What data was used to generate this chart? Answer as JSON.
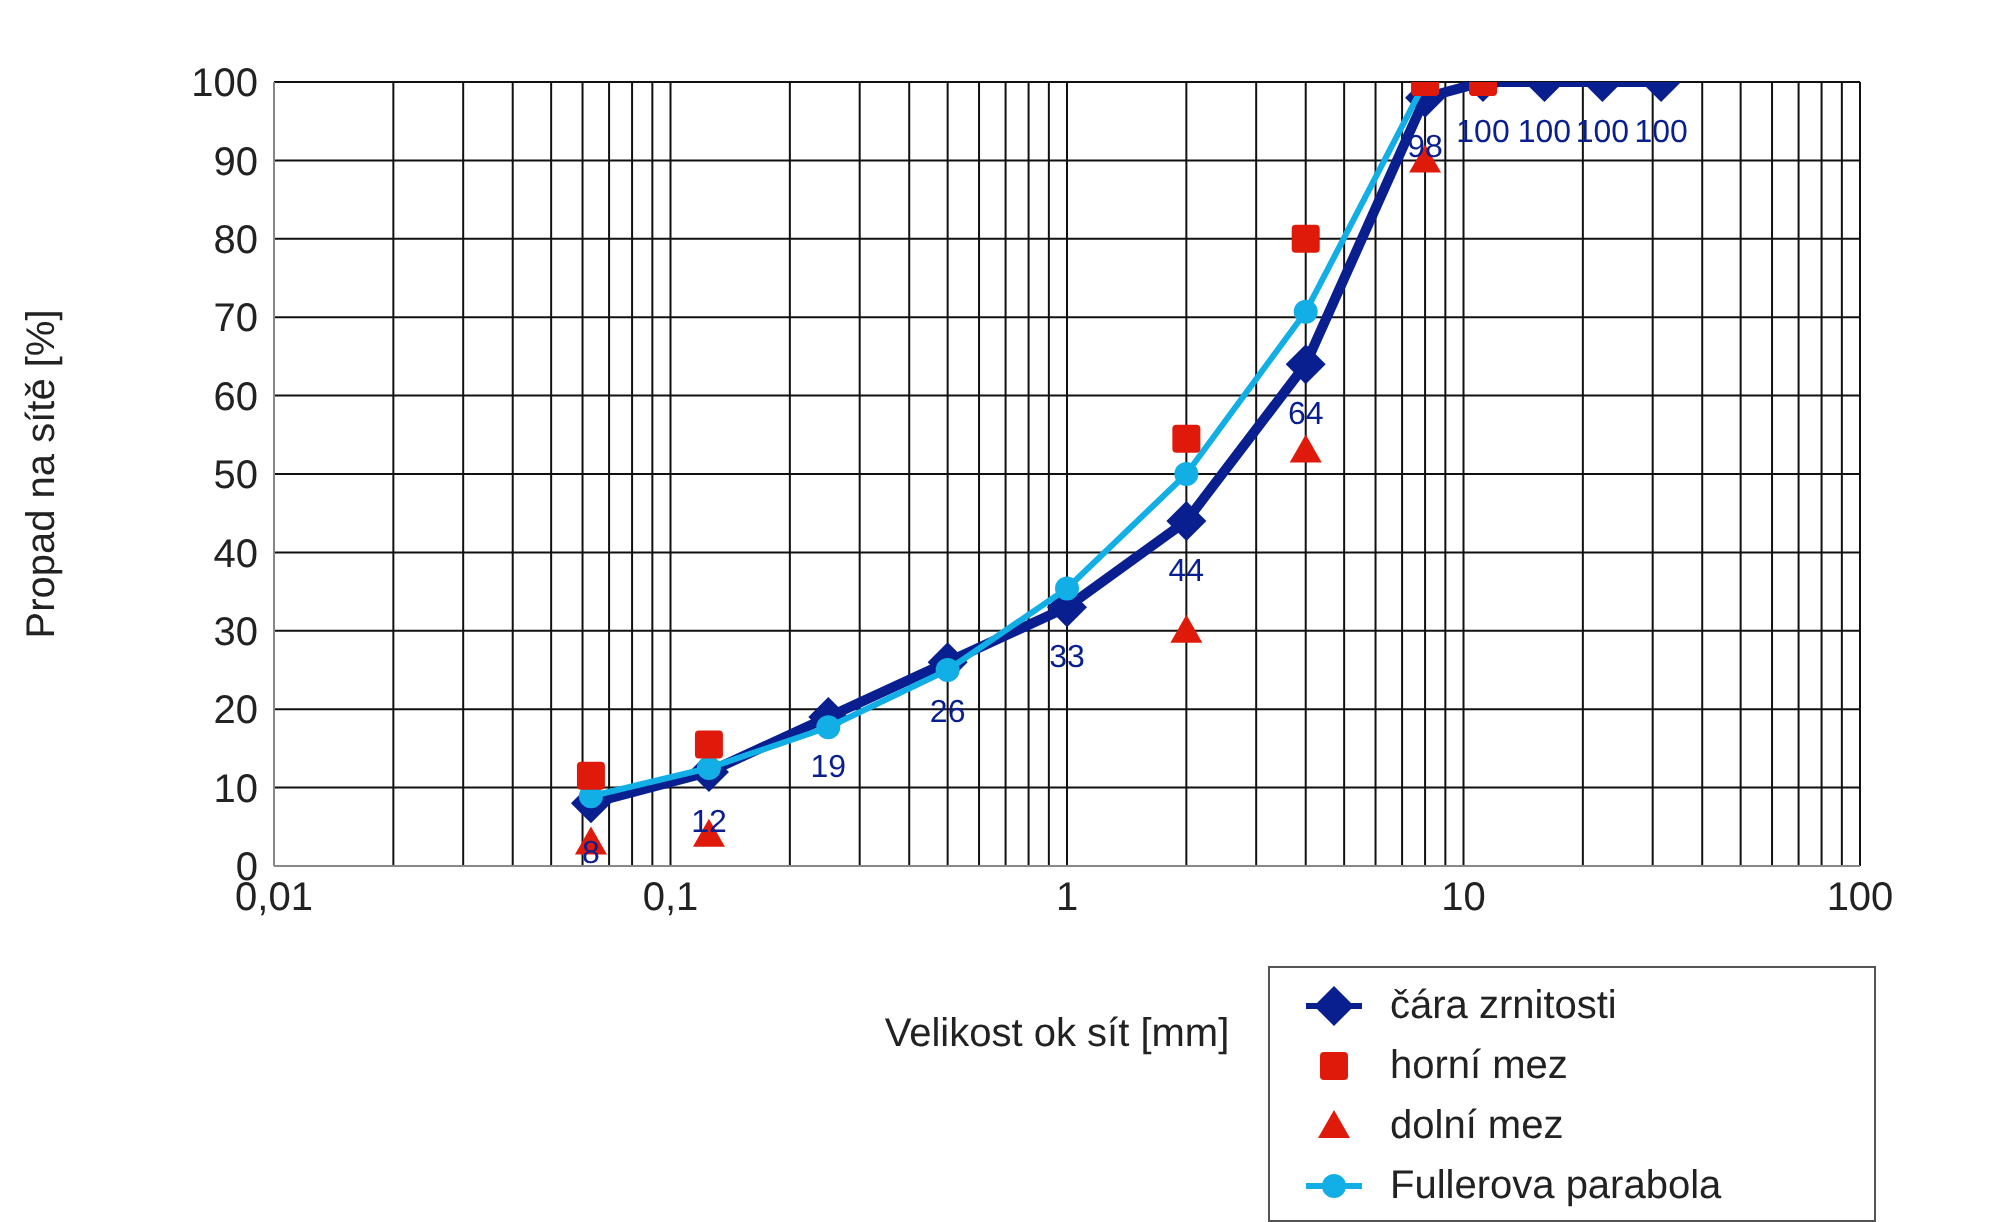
{
  "chart_data": {
    "type": "line",
    "xlabel": "Velikost ok sít [mm]",
    "ylabel": "Propad na sítě [%]",
    "log": "x",
    "xlim": [
      0.01,
      100
    ],
    "xticks": [
      {
        "value": 0.01,
        "label": "0,01"
      },
      {
        "value": 0.02,
        "label": null
      },
      {
        "value": 0.03,
        "label": null
      },
      {
        "value": 0.04,
        "label": null
      },
      {
        "value": 0.05,
        "label": null
      },
      {
        "value": 0.06,
        "label": null
      },
      {
        "value": 0.07,
        "label": null
      },
      {
        "value": 0.08,
        "label": null
      },
      {
        "value": 0.09,
        "label": null
      },
      {
        "value": 0.1,
        "label": "0,1"
      },
      {
        "value": 0.2,
        "label": null
      },
      {
        "value": 0.3,
        "label": null
      },
      {
        "value": 0.4,
        "label": null
      },
      {
        "value": 0.5,
        "label": null
      },
      {
        "value": 0.6,
        "label": null
      },
      {
        "value": 0.7,
        "label": null
      },
      {
        "value": 0.8,
        "label": null
      },
      {
        "value": 0.9,
        "label": null
      },
      1,
      {
        "value": 2,
        "label": null
      },
      {
        "value": 3,
        "label": null
      },
      {
        "value": 4,
        "label": null
      },
      {
        "value": 5,
        "label": null
      },
      {
        "value": 6,
        "label": null
      },
      {
        "value": 7,
        "label": null
      },
      {
        "value": 8,
        "label": null
      },
      {
        "value": 9,
        "label": null
      },
      10,
      {
        "value": 20,
        "label": null
      },
      {
        "value": 30,
        "label": null
      },
      {
        "value": 40,
        "label": null
      },
      {
        "value": 50,
        "label": null
      },
      {
        "value": 60,
        "label": null
      },
      {
        "value": 70,
        "label": null
      },
      {
        "value": 80,
        "label": null
      },
      {
        "value": 90,
        "label": null
      },
      100
    ],
    "ylim": [
      0,
      100
    ],
    "yticks": [
      0,
      10,
      20,
      30,
      40,
      50,
      60,
      70,
      80,
      90,
      100
    ],
    "grid": true,
    "legend": "bottom right",
    "series": [
      {
        "name": "čára zrnitosti",
        "marker": "diamond",
        "color": "#0a1f8f",
        "data_labels": true,
        "x": [
          0.063,
          0.125,
          0.25,
          0.5,
          1,
          2,
          4,
          8,
          11.2,
          16,
          22.4,
          31.5
        ],
        "values": [
          8,
          12,
          19,
          26,
          33,
          44,
          64,
          98,
          100,
          100,
          100,
          100
        ]
      },
      {
        "name": "horní mez",
        "type": "scatter",
        "marker": "square",
        "color": "#e01a0a",
        "x": [
          0.063,
          0.125,
          2,
          4,
          8,
          11.2
        ],
        "values": [
          11.5,
          15.5,
          54.5,
          80,
          100,
          100
        ]
      },
      {
        "name": "dolní mez",
        "type": "scatter",
        "marker": "triangle",
        "color": "#e01a0a",
        "x": [
          0.063,
          0.125,
          2,
          4,
          8
        ],
        "values": [
          3,
          4,
          30,
          53,
          90
        ]
      },
      {
        "name": "Fullerova parabola",
        "marker": "circle",
        "color": "#12aee6",
        "x": [
          0.063,
          0.125,
          0.25,
          0.5,
          1,
          2,
          4,
          8
        ],
        "values": [
          8.9,
          12.5,
          17.7,
          25,
          35.4,
          50,
          70.7,
          100
        ]
      }
    ]
  }
}
